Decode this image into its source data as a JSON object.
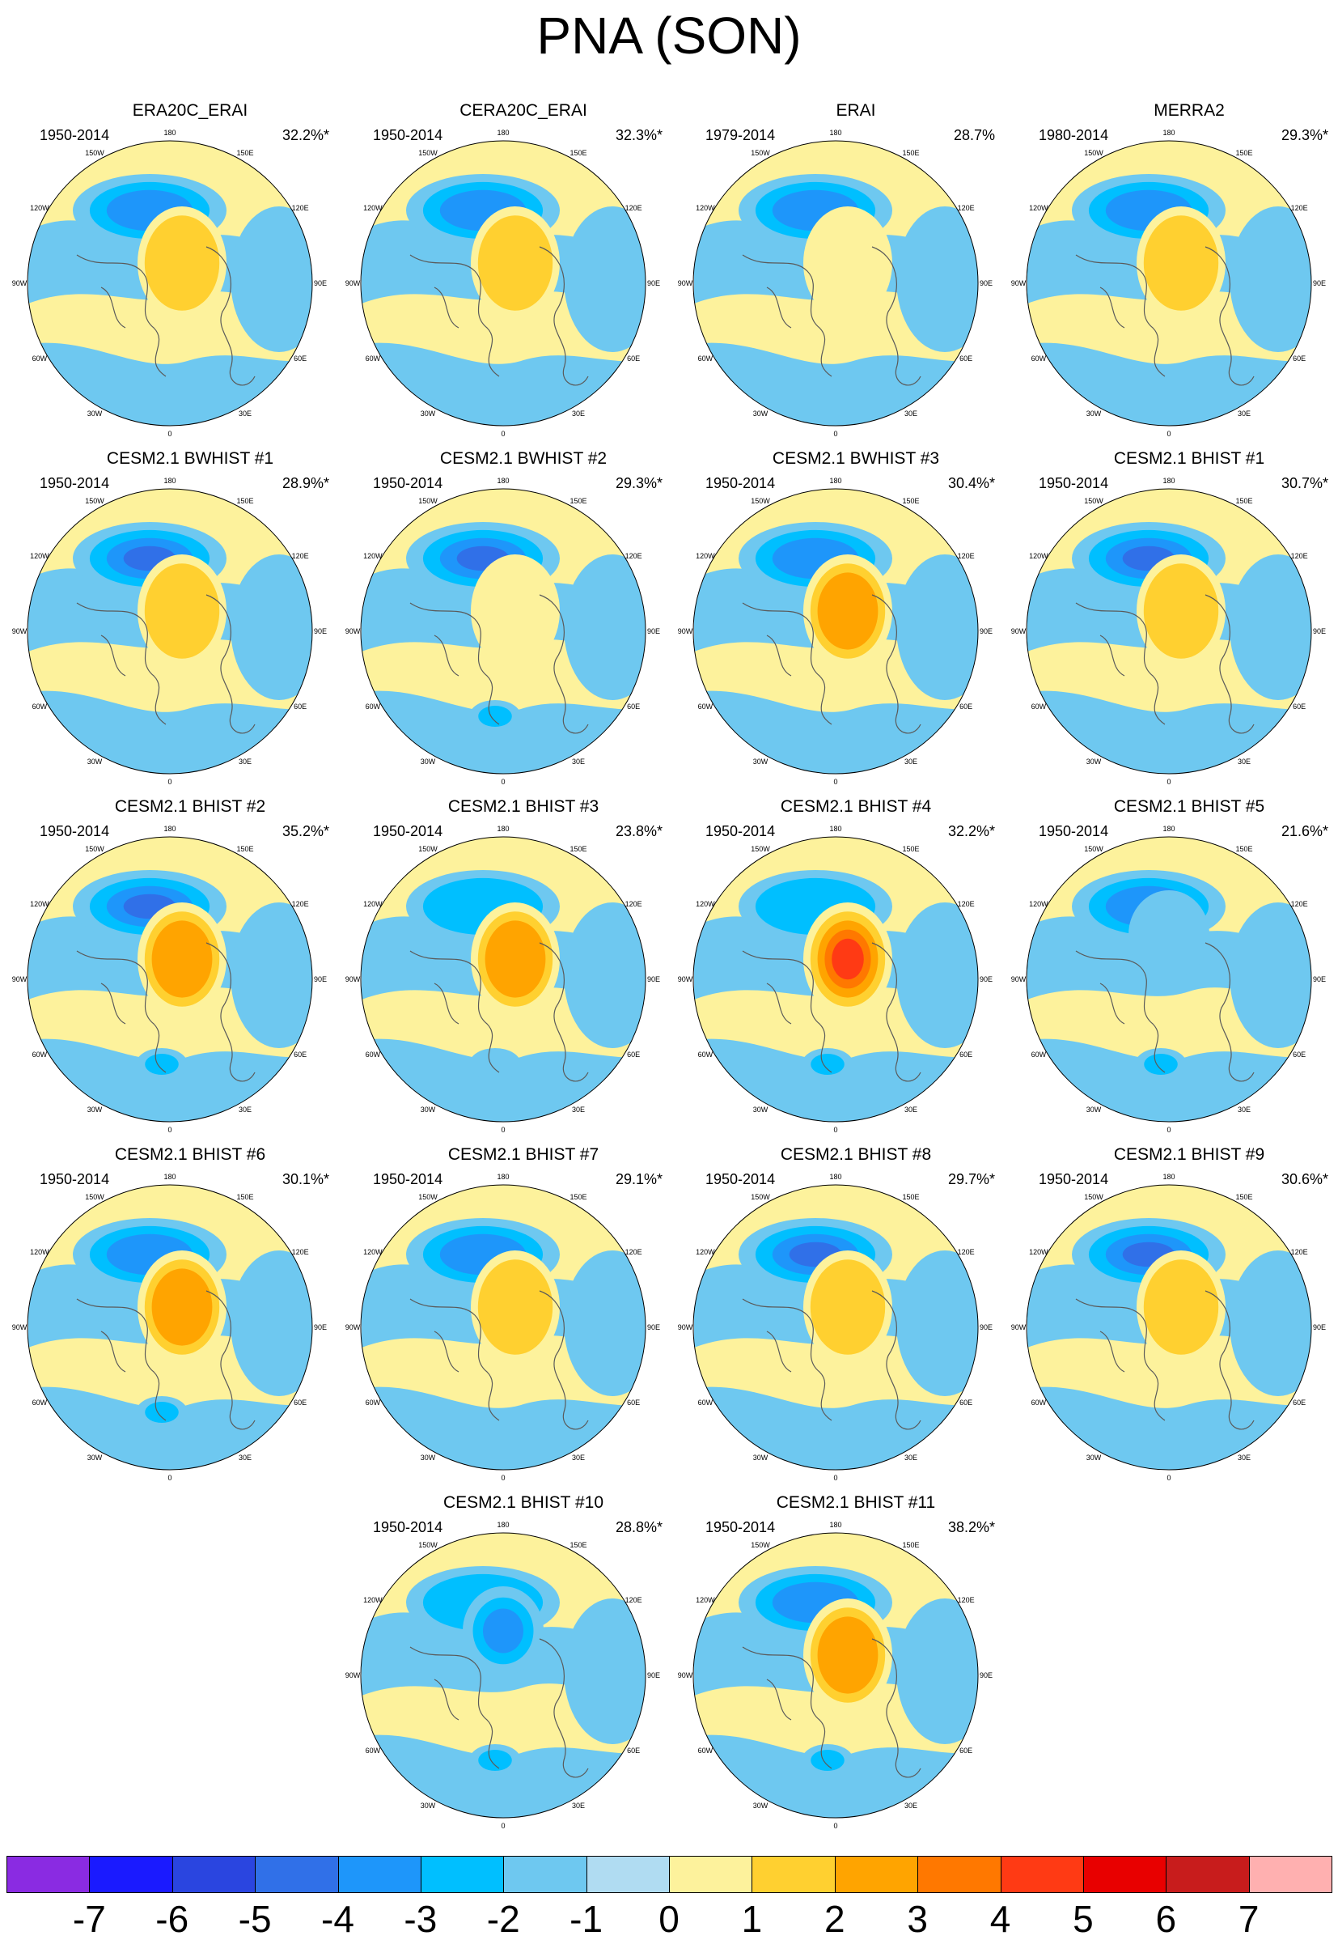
{
  "title": "PNA (SON)",
  "longitude_labels": [
    "180",
    "150E",
    "120E",
    "90E",
    "60E",
    "30E",
    "0",
    "30W",
    "60W",
    "90W",
    "120W",
    "150W"
  ],
  "panels": [
    {
      "title": "ERA20C_ERAI",
      "period": "1950-2014",
      "variance": "32.2%*",
      "center": 2,
      "low": -3,
      "extra": 0
    },
    {
      "title": "CERA20C_ERAI",
      "period": "1950-2014",
      "variance": "32.3%*",
      "center": 2,
      "low": -3,
      "extra": 0
    },
    {
      "title": "ERAI",
      "period": "1979-2014",
      "variance": "28.7%",
      "center": 1,
      "low": -3,
      "extra": 0
    },
    {
      "title": "MERRA2",
      "period": "1980-2014",
      "variance": "29.3%*",
      "center": 2,
      "low": -3,
      "extra": 0
    },
    {
      "title": "CESM2.1 BWHIST #1",
      "period": "1950-2014",
      "variance": "28.9%*",
      "center": 2,
      "low": -4,
      "extra": 0
    },
    {
      "title": "CESM2.1 BWHIST #2",
      "period": "1950-2014",
      "variance": "29.3%*",
      "center": 1,
      "low": -4,
      "extra": -2
    },
    {
      "title": "CESM2.1 BWHIST #3",
      "period": "1950-2014",
      "variance": "30.4%*",
      "center": 3,
      "low": -3,
      "extra": 0
    },
    {
      "title": "CESM2.1 BHIST #1",
      "period": "1950-2014",
      "variance": "30.7%*",
      "center": 2,
      "low": -4,
      "extra": 0
    },
    {
      "title": "CESM2.1 BHIST #2",
      "period": "1950-2014",
      "variance": "35.2%*",
      "center": 3,
      "low": -4,
      "extra": -2
    },
    {
      "title": "CESM2.1 BHIST #3",
      "period": "1950-2014",
      "variance": "23.8%*",
      "center": 3,
      "low": -2,
      "extra": -1
    },
    {
      "title": "CESM2.1 BHIST #4",
      "period": "1950-2014",
      "variance": "32.2%*",
      "center": 5,
      "low": -2,
      "extra": -2
    },
    {
      "title": "CESM2.1 BHIST #5",
      "period": "1950-2014",
      "variance": "21.6%*",
      "center": -1,
      "low": -3,
      "extra": -2
    },
    {
      "title": "CESM2.1 BHIST #6",
      "period": "1950-2014",
      "variance": "30.1%*",
      "center": 3,
      "low": -3,
      "extra": -2
    },
    {
      "title": "CESM2.1 BHIST #7",
      "period": "1950-2014",
      "variance": "29.1%*",
      "center": 2,
      "low": -3,
      "extra": 0
    },
    {
      "title": "CESM2.1 BHIST #8",
      "period": "1950-2014",
      "variance": "29.7%*",
      "center": 2,
      "low": -4,
      "extra": 0
    },
    {
      "title": "CESM2.1 BHIST #9",
      "period": "1950-2014",
      "variance": "30.6%*",
      "center": 2,
      "low": -4,
      "extra": 0
    },
    {
      "title": "CESM2.1 BHIST #10",
      "period": "1950-2014",
      "variance": "28.8%*",
      "center": -3,
      "low": -2,
      "extra": -2
    },
    {
      "title": "CESM2.1 BHIST #11",
      "period": "1950-2014",
      "variance": "38.2%*",
      "center": 3,
      "low": -3,
      "extra": -2
    }
  ],
  "colorbar": {
    "labels": [
      "-7",
      "-6",
      "-5",
      "-4",
      "-3",
      "-2",
      "-1",
      "0",
      "1",
      "2",
      "3",
      "4",
      "5",
      "6",
      "7"
    ],
    "colors": [
      "#8a2be2",
      "#1a1aff",
      "#2a45e0",
      "#3070e8",
      "#1e96fa",
      "#00bfff",
      "#6ec8f0",
      "#b0dcf2",
      "#fdf29c",
      "#ffd030",
      "#ffa400",
      "#ff7800",
      "#ff3a14",
      "#e80000",
      "#c81c1c",
      "#ffb0b0"
    ]
  }
}
